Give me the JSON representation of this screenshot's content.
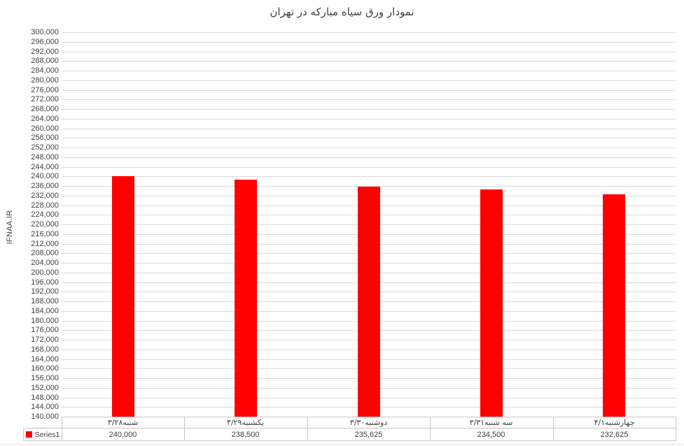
{
  "chart_data": {
    "type": "bar",
    "title": "نمودار ورق سیاه مبارکه در تهران",
    "xlabel": "",
    "ylabel": "IFNAA.IR",
    "categories": [
      "شنبه۳/۲۸",
      "یکشنبه۳/۲۹",
      "دوشنبه۳/۳۰",
      "سه شنبه۳/۳۱",
      "چهارشنبه۴/۱"
    ],
    "series": [
      {
        "name": "Series1",
        "color": "#ff0000",
        "values": [
          240000,
          238500,
          235625,
          234500,
          232625
        ]
      }
    ],
    "value_labels": [
      "240,000",
      "238,500",
      "235,625",
      "234,500",
      "232,625"
    ],
    "ylim": [
      140000,
      300000
    ],
    "ytick_step": 4000,
    "ytick_format": "comma",
    "grid": true,
    "legend_position": "data-table-left",
    "has_data_table": true
  },
  "colors": {
    "bar": "#ff0000",
    "gridline": "#d9d9d9",
    "table_border": "#c6c6c6",
    "text": "#404040",
    "background": "#ffffff",
    "frame_line": "#e3e3e3"
  }
}
